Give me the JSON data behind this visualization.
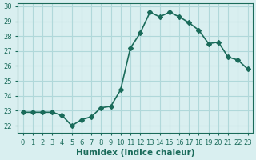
{
  "x": [
    0,
    1,
    2,
    3,
    4,
    5,
    6,
    7,
    8,
    9,
    10,
    11,
    12,
    13,
    14,
    15,
    16,
    17,
    18,
    19,
    20,
    21,
    22,
    23
  ],
  "y": [
    22.9,
    22.9,
    22.9,
    22.9,
    22.7,
    22.0,
    22.4,
    22.6,
    23.2,
    23.3,
    24.4,
    27.2,
    28.2,
    29.6,
    29.3,
    29.6,
    29.3,
    28.9,
    28.4,
    27.5,
    27.6,
    26.6,
    26.4,
    25.8
  ],
  "line_color": "#1a6b5a",
  "marker": "D",
  "marker_size": 3,
  "line_width": 1.2,
  "bg_color": "#d9eff0",
  "grid_color": "#b0d8da",
  "xlabel": "Humidex (Indice chaleur)",
  "ylim": [
    21.5,
    30.2
  ],
  "xlim": [
    -0.5,
    23.5
  ],
  "yticks": [
    22,
    23,
    24,
    25,
    26,
    27,
    28,
    29,
    30
  ],
  "xtick_labels": [
    "0",
    "1",
    "2",
    "3",
    "4",
    "5",
    "6",
    "7",
    "8",
    "9",
    "10",
    "11",
    "12",
    "13",
    "14",
    "15",
    "16",
    "17",
    "18",
    "19",
    "20",
    "21",
    "22",
    "23"
  ],
  "tick_color": "#1a6b5a",
  "label_fontsize": 7.5,
  "tick_fontsize": 6.0
}
